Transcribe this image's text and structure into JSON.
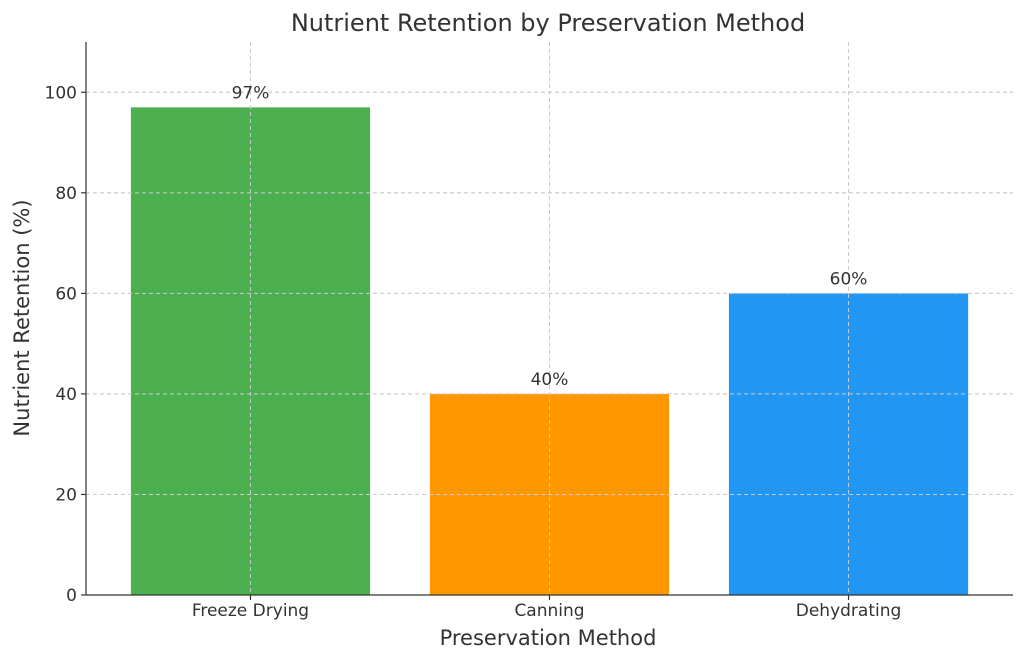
{
  "chart_data": {
    "type": "bar",
    "title": "Nutrient Retention by Preservation Method",
    "xlabel": "Preservation Method",
    "ylabel": "Nutrient Retention (%)",
    "categories": [
      "Freeze Drying",
      "Canning",
      "Dehydrating"
    ],
    "values": [
      97,
      40,
      60
    ],
    "data_labels": [
      "97%",
      "40%",
      "60%"
    ],
    "colors": [
      "#4caf50",
      "#ff9800",
      "#2196f3"
    ],
    "ylim": [
      0,
      110
    ],
    "yticks": [
      0,
      20,
      40,
      60,
      80,
      100
    ],
    "grid": true,
    "legend": "none"
  }
}
